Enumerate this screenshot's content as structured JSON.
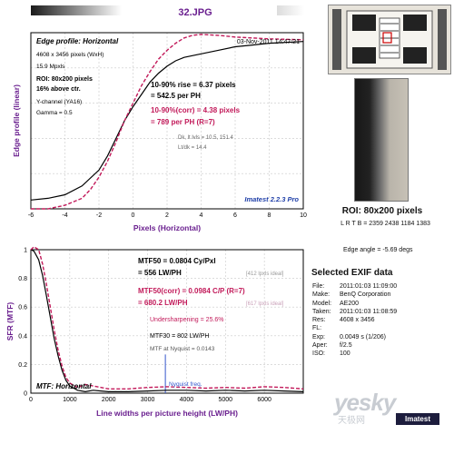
{
  "file_title": "32.JPG",
  "chart_data": [
    {
      "type": "line",
      "title": "Edge profile: Horizontal",
      "timestamp": "03-Nov-2011 14:47:21",
      "xlabel": "Pixels (Horizontal)",
      "ylabel": "Edge profile (linear)",
      "xlim": [
        -6,
        10
      ],
      "ylim": [
        0,
        1
      ],
      "x_ticks": [
        "-6",
        "-4",
        "-2",
        "0",
        "2",
        "4",
        "6",
        "8",
        "10"
      ],
      "grid": true,
      "series": [
        {
          "color": "#000000",
          "style": "solid",
          "x": [
            -6,
            -5,
            -4,
            -3,
            -2,
            -1.5,
            -1,
            -0.5,
            0,
            0.5,
            1,
            1.5,
            2,
            2.5,
            3,
            4,
            5,
            6,
            7,
            8,
            10
          ],
          "y": [
            0.05,
            0.06,
            0.08,
            0.13,
            0.22,
            0.3,
            0.4,
            0.5,
            0.58,
            0.65,
            0.72,
            0.77,
            0.81,
            0.84,
            0.86,
            0.88,
            0.9,
            0.92,
            0.93,
            0.94,
            0.95
          ]
        },
        {
          "color": "#c21a5a",
          "style": "dashed",
          "x": [
            -6,
            -5,
            -4,
            -3,
            -2.5,
            -2,
            -1.5,
            -1,
            -0.5,
            0,
            0.5,
            1,
            1.5,
            2,
            2.5,
            3,
            3.5,
            4,
            5,
            6,
            7,
            8,
            10
          ],
          "y": [
            0.0,
            0.0,
            0.02,
            0.06,
            0.11,
            0.18,
            0.27,
            0.38,
            0.5,
            0.6,
            0.7,
            0.78,
            0.85,
            0.9,
            0.94,
            0.97,
            0.985,
            0.99,
            0.985,
            0.975,
            0.97,
            0.965,
            0.96
          ]
        }
      ],
      "annotations": {
        "size_px": "4608 x 3456 pixels (WxH)",
        "mpxls": "15.9 Mpxls",
        "roi": "ROI: 80x200 pixels",
        "above": "16% above ctr.",
        "channel": "Y-channel  (YA16)",
        "gamma": "Gamma = 0.5",
        "rise1": "10-90% rise = 6.37 pixels",
        "rise2": "= 542.5 per PH",
        "corr1": "10-90%(corr) = 4.38 pixels",
        "corr2": "= 789 per PH  (R=7)",
        "dk": "Dk, lt lvls = 10.5, 151.4",
        "ltdk": "Lt/dk = 14.4",
        "brand": "Imatest 2.2.3 Pro"
      }
    },
    {
      "type": "line",
      "title": "MTF: Horizontal",
      "xlabel": "Line widths per picture height (LW/PH)",
      "ylabel": "SFR (MTF)",
      "xlim": [
        0,
        7000
      ],
      "ylim": [
        0,
        1
      ],
      "x_ticks": [
        "0",
        "1000",
        "2000",
        "3000",
        "4000",
        "5000",
        "6000"
      ],
      "y_ticks": [
        "0",
        "0.2",
        "0.4",
        "0.6",
        "0.8",
        "1"
      ],
      "grid": true,
      "nyquist_x": 3456,
      "series": [
        {
          "color": "#000000",
          "style": "solid",
          "x": [
            0,
            80,
            200,
            300,
            400,
            500,
            600,
            700,
            800,
            900,
            1000,
            1200,
            1400,
            1600,
            1800,
            2000,
            2500,
            3000,
            3500,
            4000,
            4500,
            5000,
            5500,
            6000,
            6500,
            7000
          ],
          "y": [
            1.0,
            0.99,
            0.93,
            0.82,
            0.68,
            0.53,
            0.38,
            0.26,
            0.16,
            0.09,
            0.05,
            0.02,
            0.01,
            0.02,
            0.015,
            0.01,
            0.01,
            0.015,
            0.02,
            0.02,
            0.015,
            0.02,
            0.015,
            0.02,
            0.015,
            0.01
          ]
        },
        {
          "color": "#c21a5a",
          "style": "dashed",
          "x": [
            0,
            80,
            200,
            300,
            400,
            500,
            600,
            700,
            800,
            900,
            1000,
            1200,
            1400,
            1600,
            1800,
            2000,
            2500,
            3000,
            3500,
            4000,
            4500,
            5000,
            5500,
            6000,
            6500,
            7000
          ],
          "y": [
            1.0,
            1.02,
            1.0,
            0.9,
            0.76,
            0.6,
            0.44,
            0.3,
            0.19,
            0.11,
            0.07,
            0.04,
            0.06,
            0.05,
            0.04,
            0.03,
            0.03,
            0.04,
            0.045,
            0.04,
            0.035,
            0.04,
            0.035,
            0.045,
            0.04,
            0.03
          ]
        }
      ],
      "annotations": {
        "mtf50": "MTF50 = 0.0804 Cy/Pxl",
        "mtf50b": "= 556 LW/PH",
        "ideal1": "[412 lpxls ideal]",
        "corr1": "MTF50(corr) = 0.0984 C/P  (R=7)",
        "corr2": "= 680.2 LW/PH",
        "ideal2": "[617 lpxls ideal]",
        "under": "Undersharpening = 25.6%",
        "mtf30": "MTF30 = 802 LW/PH",
        "nyq": "MTF at Nyquist = 0.0143",
        "nyq_label": "Nyquist freq.",
        "brand": "Imatest"
      }
    }
  ],
  "roi_panel": {
    "title": "ROI: 80x200 pixels",
    "lrtb": "L R T B = 2359 2438  1184 1383",
    "edge_angle": "Edge angle = -5.69 degs"
  },
  "exif": {
    "title": "Selected EXIF data",
    "rows": [
      {
        "k": "File:",
        "v": "2011:01:03 11:09:00"
      },
      {
        "k": "Make:",
        "v": "BenQ Corporation"
      },
      {
        "k": "Model:",
        "v": "AE200"
      },
      {
        "k": "Taken:",
        "v": "2011:01:03 11:08:59"
      },
      {
        "k": "Res:",
        "v": "4608 x 3456"
      },
      {
        "k": "FL:",
        "v": ""
      },
      {
        "k": "Exp:",
        "v": "0.0049 s  (1/206)"
      },
      {
        "k": "Aper:",
        "v": "f/2.5"
      },
      {
        "k": "ISO:",
        "v": "100"
      }
    ]
  },
  "watermark": {
    "text": "yesky",
    "sub": "天极网",
    "logo": "Imatest"
  }
}
